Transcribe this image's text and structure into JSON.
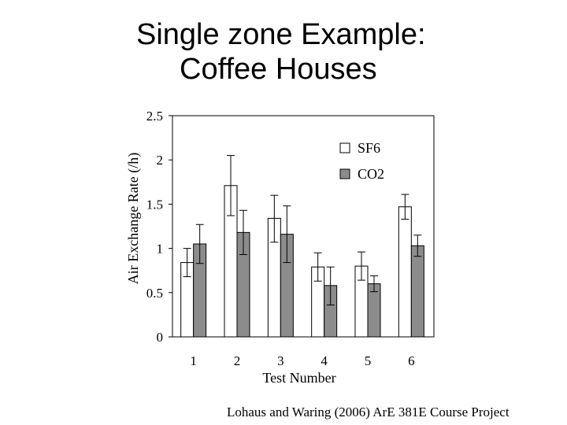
{
  "slide": {
    "title_line1": "Single zone Example:",
    "title_line2": "Coffee Houses",
    "citation": "Lohaus and Waring (2006) ArE 381E Course Project"
  },
  "chart_data": {
    "type": "bar",
    "xlabel": "Test Number",
    "ylabel": "Air Exchange Rate (/h)",
    "categories": [
      "1",
      "2",
      "3",
      "4",
      "5",
      "6"
    ],
    "ylim": [
      0,
      2.5
    ],
    "yticks": [
      0,
      0.5,
      1,
      1.5,
      2,
      2.5
    ],
    "ytick_labels": [
      "0",
      "0.5",
      "1",
      "1.5",
      "2",
      "2.5"
    ],
    "grid": false,
    "legend_position": "top-right",
    "series": [
      {
        "name": "SF6",
        "color": "#ffffff",
        "values": [
          0.84,
          1.71,
          1.34,
          0.79,
          0.8,
          1.47
        ],
        "error_low": [
          0.68,
          1.37,
          1.07,
          0.63,
          0.64,
          1.33
        ],
        "error_high": [
          1.0,
          2.05,
          1.6,
          0.95,
          0.96,
          1.61
        ]
      },
      {
        "name": "CO2",
        "color": "#8c8c8c",
        "values": [
          1.05,
          1.18,
          1.16,
          0.58,
          0.6,
          1.03
        ],
        "error_low": [
          0.83,
          0.93,
          0.84,
          0.36,
          0.51,
          0.91
        ],
        "error_high": [
          1.27,
          1.43,
          1.48,
          0.79,
          0.69,
          1.15
        ]
      }
    ]
  }
}
